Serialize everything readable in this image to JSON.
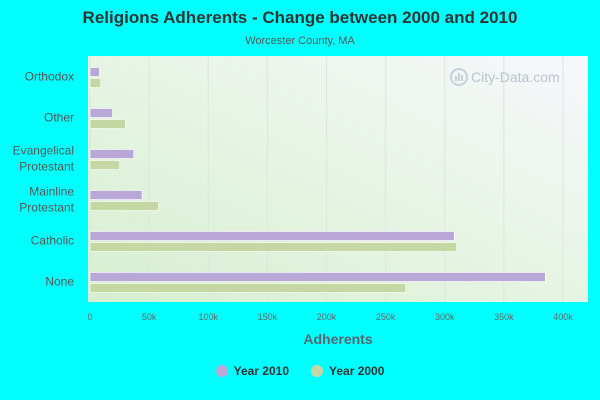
{
  "chart_data": {
    "type": "bar",
    "orientation": "horizontal",
    "title": "Religions Adherents - Change between 2000 and 2010",
    "subtitle": "Worcester County, MA",
    "xlabel": "Adherents",
    "categories": [
      "Orthodox",
      "Other",
      "Evangelical Protestant",
      "Mainline Protestant",
      "Catholic",
      "None"
    ],
    "category_labels": [
      [
        "Orthodox"
      ],
      [
        "Other"
      ],
      [
        "Evangelical",
        "Protestant"
      ],
      [
        "Mainline",
        "Protestant"
      ],
      [
        "Catholic"
      ],
      [
        "None"
      ]
    ],
    "series": [
      {
        "name": "Year 2010",
        "color": "#b9a7d8",
        "values": [
          8000,
          19000,
          37000,
          44000,
          308000,
          385000
        ]
      },
      {
        "name": "Year 2000",
        "color": "#c5d8a4",
        "values": [
          9000,
          30000,
          25000,
          58000,
          310000,
          267000
        ]
      }
    ],
    "xlim": [
      0,
      420000
    ],
    "xticks": [
      0,
      50000,
      100000,
      150000,
      200000,
      250000,
      300000,
      350000,
      400000
    ],
    "xtick_labels": [
      "0",
      "50k",
      "100k",
      "150k",
      "200k",
      "250k",
      "300k",
      "350k",
      "400k"
    ],
    "grid": true,
    "legend_position": "bottom",
    "watermark": "City-Data.com"
  }
}
